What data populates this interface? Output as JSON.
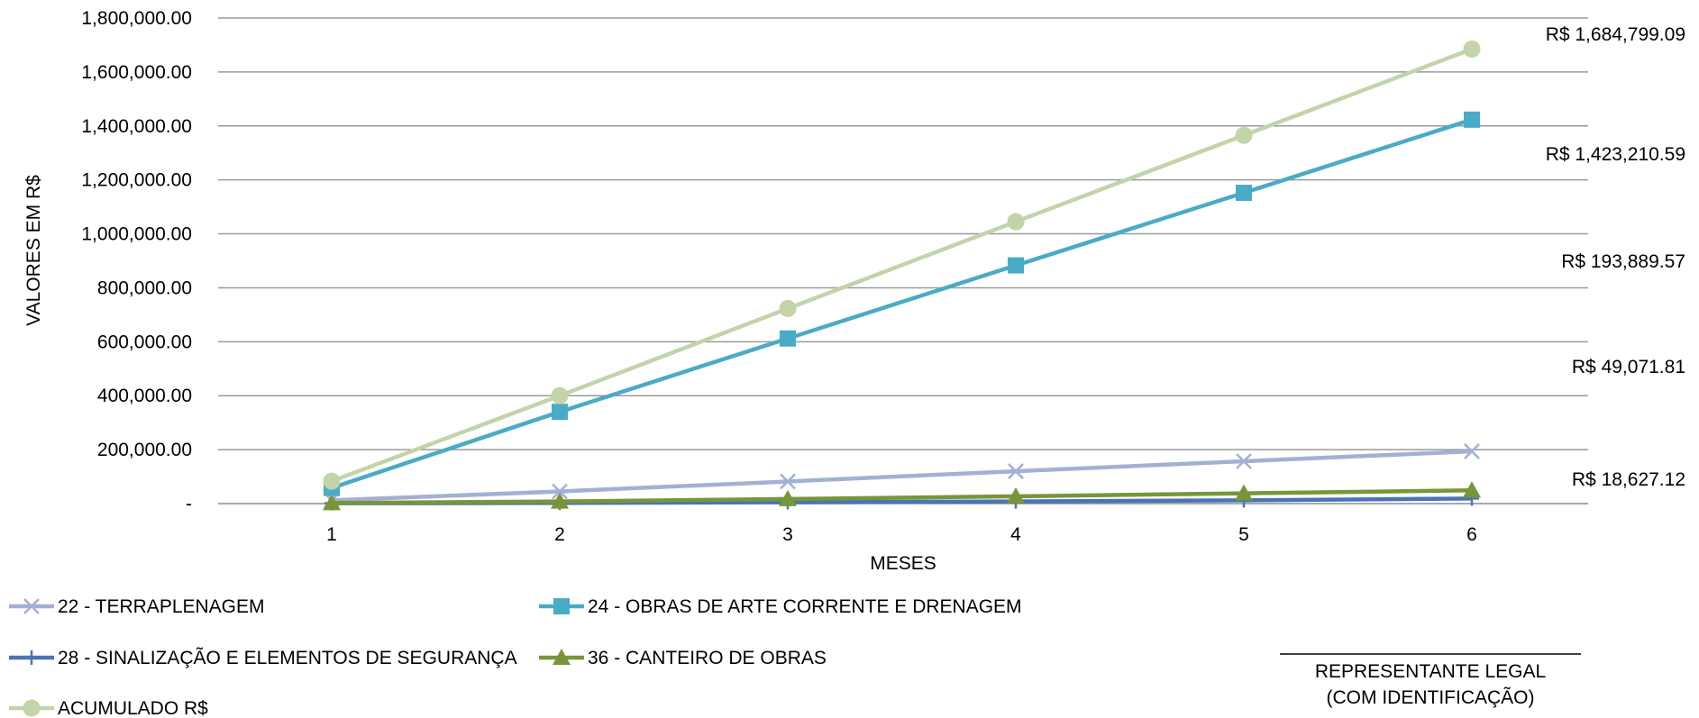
{
  "chart_data": {
    "type": "line",
    "ylabel": "VALORES EM R$",
    "xlabel": "MESES",
    "x": [
      1,
      2,
      3,
      4,
      5,
      6
    ],
    "ylim": [
      0,
      1800000
    ],
    "yticks": [
      0,
      200000,
      400000,
      600000,
      800000,
      1000000,
      1200000,
      1400000,
      1600000,
      1800000
    ],
    "ytick_labels": [
      "-",
      "200,000.00",
      "400,000.00",
      "600,000.00",
      "800,000.00",
      "1,000,000.00",
      "1,200,000.00",
      "1,400,000.00",
      "1,600,000.00",
      "1,800,000.00"
    ],
    "grid": true,
    "legend_position": "bottom",
    "series": [
      {
        "name": "22 - TERRAPLENAGEM",
        "color": "#a3b0d6",
        "marker": "x",
        "values": [
          12000,
          45000,
          82000,
          120000,
          157000,
          193889.57
        ]
      },
      {
        "name": "24 - OBRAS DE ARTE CORRENTE E DRENAGEM",
        "color": "#4aabc6",
        "marker": "square",
        "values": [
          58000,
          340000,
          612000,
          883000,
          1152000,
          1423210.59
        ]
      },
      {
        "name": "28 - SINALIZAÇÃO E ELEMENTOS DE SEGURANÇA",
        "color": "#4a74b5",
        "marker": "dash",
        "values": [
          1000,
          2500,
          5000,
          8000,
          12000,
          18627.12
        ]
      },
      {
        "name": "36 - CANTEIRO DE OBRAS",
        "color": "#77963a",
        "marker": "triangle",
        "values": [
          2000,
          8000,
          17000,
          27000,
          38000,
          49071.81
        ]
      },
      {
        "name": "ACUMULADO  R$",
        "color": "#c2d4a8",
        "marker": "circle",
        "values": [
          83000,
          400000,
          723000,
          1045000,
          1365000,
          1684799.09
        ]
      }
    ],
    "end_labels": [
      {
        "text": "R$ 1,684,799.09"
      },
      {
        "text": "R$ 1,423,210.59"
      },
      {
        "text": "R$ 193,889.57"
      },
      {
        "text": "R$ 49,071.81"
      },
      {
        "text": "R$ 18,627.12"
      }
    ]
  },
  "signature": {
    "line1": "REPRESENTANTE  LEGAL",
    "line2": "(COM IDENTIFICAÇÃO)"
  }
}
